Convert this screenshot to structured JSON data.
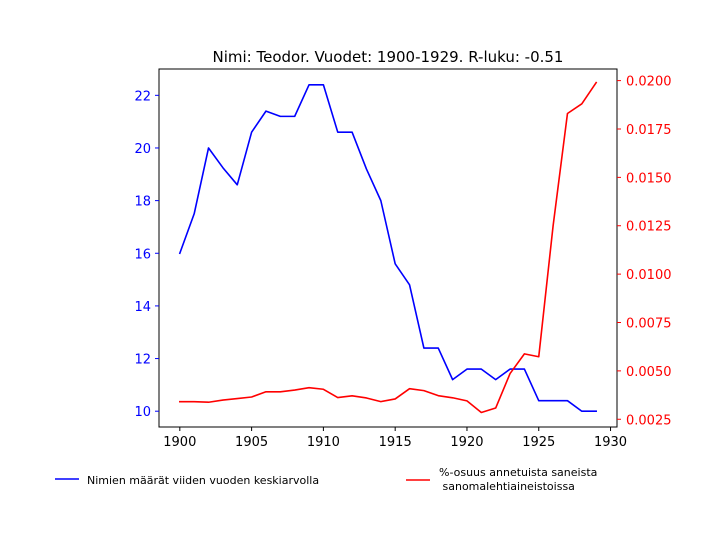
{
  "chart_data": {
    "type": "line",
    "title": "Nimi: Teodor. Vuodet: 1900-1929. R-luku: -0.51",
    "x": [
      1900,
      1901,
      1902,
      1903,
      1904,
      1905,
      1906,
      1907,
      1908,
      1909,
      1910,
      1911,
      1912,
      1913,
      1914,
      1915,
      1916,
      1917,
      1918,
      1919,
      1920,
      1921,
      1922,
      1923,
      1924,
      1925,
      1926,
      1927,
      1928,
      1929
    ],
    "x_ticks": [
      "1900",
      "1905",
      "1910",
      "1915",
      "1920",
      "1925",
      "1930"
    ],
    "xlim": [
      1898.55,
      1930.45
    ],
    "y_left": {
      "ticks": [
        "10",
        "12",
        "14",
        "16",
        "18",
        "20",
        "22"
      ],
      "lim": [
        9.4,
        23.0
      ],
      "color": "#0000ff"
    },
    "y_right": {
      "ticks": [
        "0.0025",
        "0.0050",
        "0.0075",
        "0.0100",
        "0.0125",
        "0.0150",
        "0.0175",
        "0.0200"
      ],
      "lim": [
        0.0021,
        0.0206
      ],
      "color": "#ff0000"
    },
    "series": [
      {
        "name": "Nimien määrät viiden vuoden keskiarvolla",
        "axis": "left",
        "color": "#0000ff",
        "values": [
          16.0,
          17.5,
          20.0,
          19.25,
          18.6,
          20.6,
          21.4,
          21.2,
          21.2,
          22.4,
          22.4,
          20.6,
          20.6,
          19.2,
          18.0,
          15.6,
          14.8,
          12.4,
          12.4,
          11.2,
          11.6,
          11.6,
          11.2,
          11.6,
          11.6,
          10.4,
          10.4,
          10.4,
          10.0,
          10.0
        ]
      },
      {
        "name": "%-osuus annetuista saneista\n sanomalehtiaineistoissa",
        "axis": "right",
        "color": "#ff0000",
        "values": [
          0.00341,
          0.00341,
          0.00338,
          0.00349,
          0.00357,
          0.00365,
          0.00392,
          0.00392,
          0.00401,
          0.00413,
          0.00405,
          0.00362,
          0.00371,
          0.0036,
          0.00341,
          0.00355,
          0.00408,
          0.00398,
          0.00372,
          0.00361,
          0.00345,
          0.00285,
          0.00308,
          0.00486,
          0.00588,
          0.00573,
          0.0125,
          0.0183,
          0.0188,
          0.0199
        ]
      }
    ],
    "legend_placement": "bottom",
    "grid": false
  }
}
